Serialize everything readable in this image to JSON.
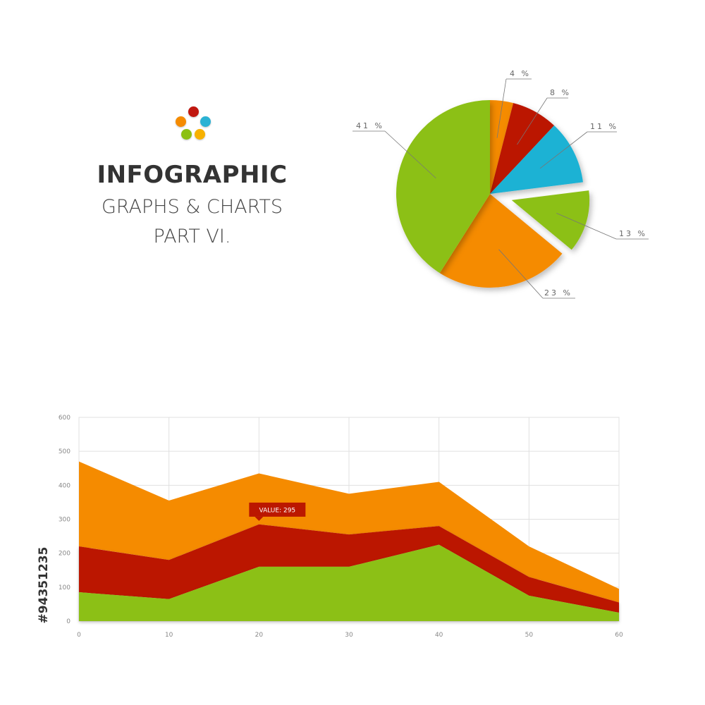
{
  "heading": {
    "title": "INFOGRAPHIC",
    "subtitle_1": "GRAPHS & CHARTS",
    "subtitle_2": "PART VI."
  },
  "logo": {
    "colors": [
      "#c0170f",
      "#2bb2d4",
      "#f58b00",
      "#8cc013",
      "#f7b100"
    ]
  },
  "side_code": "#94351235",
  "colors": {
    "green": "#8cc013",
    "orange": "#f58b00",
    "red": "#bb1700",
    "blue": "#1bb2d4"
  },
  "chart_data": [
    {
      "type": "pie",
      "slices": [
        {
          "label": "4 %",
          "value": 4,
          "color": "#f58b00"
        },
        {
          "label": "8 %",
          "value": 8,
          "color": "#bb1700"
        },
        {
          "label": "11 %",
          "value": 11,
          "color": "#1bb2d4"
        },
        {
          "label": "13 %",
          "value": 13,
          "color": "#8cc013",
          "exploded": true
        },
        {
          "label": "23 %",
          "value": 23,
          "color": "#f58b00"
        },
        {
          "label": "41 %",
          "value": 41,
          "color": "#8cc013"
        }
      ]
    },
    {
      "type": "area",
      "stacked": true,
      "x": [
        0,
        10,
        20,
        30,
        40,
        50,
        60
      ],
      "xticks": [
        "0",
        "10",
        "20",
        "30",
        "40",
        "50",
        "60"
      ],
      "yticks": [
        "0",
        "100",
        "200",
        "300",
        "400",
        "500",
        "600"
      ],
      "xlim": [
        0,
        60
      ],
      "ylim": [
        0,
        600
      ],
      "grid": true,
      "series": [
        {
          "color": "#8cc013",
          "values": [
            85,
            65,
            160,
            160,
            225,
            75,
            25
          ]
        },
        {
          "color": "#bb1700",
          "values": [
            135,
            115,
            125,
            95,
            55,
            55,
            30
          ]
        },
        {
          "color": "#f58b00",
          "values": [
            250,
            175,
            150,
            120,
            130,
            90,
            40
          ]
        }
      ],
      "annotation": {
        "text": "VALUE: 295",
        "x": 20,
        "y": 295
      }
    }
  ]
}
